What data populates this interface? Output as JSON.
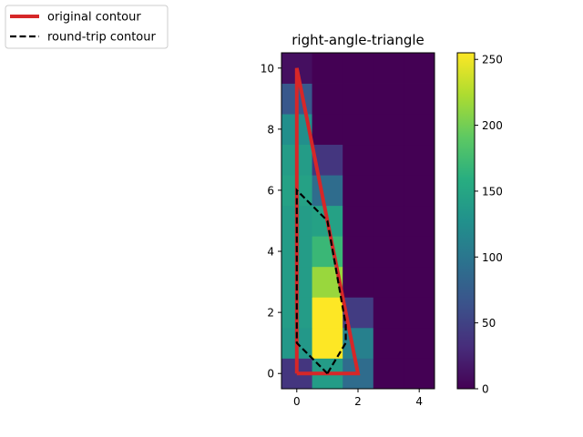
{
  "chart_data": {
    "type": "heatmap",
    "title": "right-angle-triangle",
    "xlabel": "",
    "ylabel": "",
    "xlim": [
      -0.5,
      4.5
    ],
    "ylim": [
      -0.5,
      10.5
    ],
    "x_ticks": [
      0,
      2,
      4
    ],
    "y_ticks": [
      0,
      2,
      4,
      6,
      8,
      10
    ],
    "grid": false,
    "colormap": "viridis",
    "colorbar": {
      "min": 0,
      "max": 255,
      "ticks": [
        0,
        50,
        100,
        150,
        200,
        250
      ]
    },
    "grid_values": [
      [
        40,
        140,
        90,
        0,
        0
      ],
      [
        135,
        255,
        110,
        0,
        0
      ],
      [
        140,
        255,
        45,
        0,
        0
      ],
      [
        140,
        215,
        0,
        0,
        0
      ],
      [
        140,
        170,
        0,
        0,
        0
      ],
      [
        140,
        145,
        0,
        0,
        0
      ],
      [
        145,
        90,
        0,
        0,
        0
      ],
      [
        140,
        40,
        0,
        0,
        0
      ],
      [
        125,
        0,
        0,
        0,
        0
      ],
      [
        70,
        0,
        0,
        0,
        0
      ],
      [
        10,
        0,
        0,
        0,
        0
      ]
    ],
    "series": [
      {
        "name": "original contour",
        "color": "#d62728",
        "style": "solid",
        "points": [
          [
            0,
            0
          ],
          [
            2,
            0
          ],
          [
            0,
            10
          ],
          [
            0,
            0
          ]
        ]
      },
      {
        "name": "round-trip contour",
        "color": "#000000",
        "style": "dashed",
        "points": [
          [
            1,
            0
          ],
          [
            0,
            1
          ],
          [
            0,
            6
          ],
          [
            1,
            5
          ],
          [
            1.6,
            1.6
          ],
          [
            1.6,
            1
          ],
          [
            1,
            0
          ]
        ]
      }
    ],
    "legend": {
      "placement": "top-left"
    }
  }
}
